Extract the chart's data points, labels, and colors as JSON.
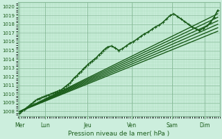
{
  "title": "",
  "xlabel": "Pression niveau de la mer( hPa )",
  "bg_color": "#cceedd",
  "plot_bg_color": "#cceedd",
  "grid_major_color": "#88bb99",
  "grid_minor_color": "#aaddbb",
  "line_color": "#1a5c1a",
  "ylim": [
    1007.5,
    1020.5
  ],
  "yticks": [
    1008,
    1009,
    1010,
    1011,
    1012,
    1013,
    1014,
    1015,
    1016,
    1017,
    1018,
    1019,
    1020
  ],
  "day_labels": [
    "Mer",
    "Lun",
    "Jeu",
    "Ven",
    "Sam",
    "Dim"
  ],
  "day_x": [
    0.0,
    0.7,
    1.85,
    3.05,
    4.15,
    5.05
  ],
  "xlim": [
    -0.05,
    5.45
  ],
  "lines": [
    {
      "x": [
        0.0,
        0.06,
        0.12,
        0.18,
        0.24,
        0.3,
        0.36,
        0.42,
        0.48,
        0.54,
        0.6,
        0.66,
        0.72,
        0.78,
        0.84,
        0.9,
        0.96,
        1.02,
        1.08,
        1.14,
        1.2,
        1.26,
        1.32,
        1.38,
        1.44,
        1.5,
        1.56,
        1.62,
        1.68,
        1.74,
        1.8,
        1.86,
        1.92,
        1.98,
        2.04,
        2.1,
        2.16,
        2.22,
        2.28,
        2.34,
        2.4,
        2.5,
        2.6,
        2.7,
        2.8,
        2.9,
        3.0,
        3.1,
        3.2,
        3.3,
        3.4,
        3.5,
        3.6,
        3.7,
        3.8,
        3.9,
        4.0,
        4.1,
        4.2,
        4.3,
        4.4,
        4.5,
        4.6,
        4.7,
        4.8,
        4.9,
        5.0,
        5.1,
        5.2,
        5.3,
        5.4
      ],
      "y": [
        1007.8,
        1008.0,
        1008.2,
        1008.4,
        1008.6,
        1008.8,
        1009.0,
        1009.2,
        1009.4,
        1009.5,
        1009.6,
        1009.7,
        1009.8,
        1009.9,
        1010.0,
        1010.1,
        1010.2,
        1010.3,
        1010.4,
        1010.5,
        1010.7,
        1010.9,
        1011.1,
        1011.3,
        1011.6,
        1011.9,
        1012.1,
        1012.4,
        1012.6,
        1012.9,
        1013.1,
        1013.4,
        1013.6,
        1013.8,
        1014.0,
        1014.2,
        1014.5,
        1014.7,
        1015.0,
        1015.2,
        1015.4,
        1015.5,
        1015.3,
        1015.0,
        1015.2,
        1015.5,
        1015.8,
        1016.0,
        1016.3,
        1016.6,
        1016.9,
        1017.1,
        1017.4,
        1017.7,
        1017.9,
        1018.2,
        1018.6,
        1019.0,
        1019.2,
        1018.9,
        1018.6,
        1018.3,
        1018.0,
        1017.7,
        1017.5,
        1017.3,
        1017.5,
        1017.8,
        1018.2,
        1018.8,
        1019.6
      ],
      "marker": true,
      "lw": 1.2
    },
    {
      "x": [
        0.0,
        5.4
      ],
      "y": [
        1008.0,
        1017.2
      ],
      "marker": false,
      "lw": 1.0
    },
    {
      "x": [
        0.0,
        5.4
      ],
      "y": [
        1008.0,
        1017.6
      ],
      "marker": false,
      "lw": 1.0
    },
    {
      "x": [
        0.0,
        5.4
      ],
      "y": [
        1008.0,
        1018.0
      ],
      "marker": false,
      "lw": 1.0
    },
    {
      "x": [
        0.0,
        5.4
      ],
      "y": [
        1008.0,
        1018.4
      ],
      "marker": false,
      "lw": 1.0
    },
    {
      "x": [
        0.0,
        5.4
      ],
      "y": [
        1008.0,
        1018.8
      ],
      "marker": false,
      "lw": 1.0
    },
    {
      "x": [
        0.0,
        5.4
      ],
      "y": [
        1008.0,
        1019.2
      ],
      "marker": false,
      "lw": 1.0
    }
  ]
}
